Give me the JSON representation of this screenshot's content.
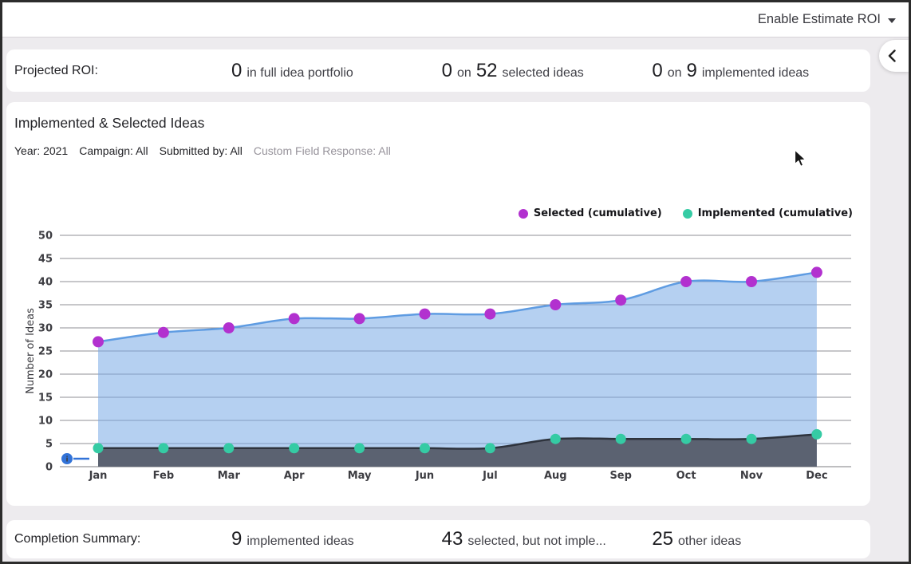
{
  "top_bar": {
    "menu_label": "Enable Estimate ROI"
  },
  "side_tab": {
    "icon": "chevron-left"
  },
  "roi_bar": {
    "label": "Projected ROI:",
    "stats": [
      {
        "segments": [
          [
            "0",
            "big"
          ],
          [
            "in full idea portfolio",
            "small"
          ]
        ]
      },
      {
        "segments": [
          [
            "0",
            "big"
          ],
          [
            "on",
            "small"
          ],
          [
            "52",
            "big"
          ],
          [
            "selected ideas",
            "small"
          ]
        ]
      },
      {
        "segments": [
          [
            "0",
            "big"
          ],
          [
            "on",
            "small"
          ],
          [
            "9",
            "big"
          ],
          [
            "implemented ideas",
            "small"
          ]
        ]
      }
    ]
  },
  "chart_card": {
    "title": "Implemented & Selected Ideas",
    "filters": [
      {
        "text": "Year: 2021",
        "muted": false
      },
      {
        "text": "Campaign: All",
        "muted": false
      },
      {
        "text": "Submitted by: All",
        "muted": false
      },
      {
        "text": "Custom Field Response: All",
        "muted": true
      }
    ],
    "annotation": {
      "icon": "info",
      "color": "#3273d8"
    }
  },
  "chart_data": {
    "type": "area",
    "categories": [
      "Jan",
      "Feb",
      "Mar",
      "Apr",
      "May",
      "Jun",
      "Jul",
      "Aug",
      "Sep",
      "Oct",
      "Nov",
      "Dec"
    ],
    "series": [
      {
        "name": "Selected (cumulative)",
        "values": [
          27,
          29,
          30,
          32,
          32,
          33,
          33,
          35,
          36,
          40,
          40,
          42
        ],
        "point_color": "#b231cf",
        "line_color": "#5f9ce2",
        "fill": "rgba(120,170,230,0.55)"
      },
      {
        "name": "Implemented (cumulative)",
        "values": [
          4,
          4,
          4,
          4,
          4,
          4,
          4,
          6,
          6,
          6,
          6,
          7
        ],
        "point_color": "#35cba4",
        "line_color": "#2e333d",
        "fill": "#5b6271"
      }
    ],
    "title": "Implemented & Selected Ideas",
    "xlabel": "",
    "ylabel": "Number of Ideas",
    "ylim": [
      0,
      50
    ],
    "ytick_step": 5,
    "grid": true,
    "legend_position": "top-right"
  },
  "summary_bar": {
    "label": "Completion Summary:",
    "stats": [
      {
        "segments": [
          [
            "9",
            "big"
          ],
          [
            "implemented ideas",
            "small"
          ]
        ]
      },
      {
        "segments": [
          [
            "43",
            "big"
          ],
          [
            "selected, but not imple...",
            "small"
          ]
        ]
      },
      {
        "segments": [
          [
            "25",
            "big"
          ],
          [
            "other ideas",
            "small"
          ]
        ]
      }
    ]
  },
  "icons": {
    "cursor": "arrow-pointer",
    "dropdown_caret": "caret-down"
  }
}
